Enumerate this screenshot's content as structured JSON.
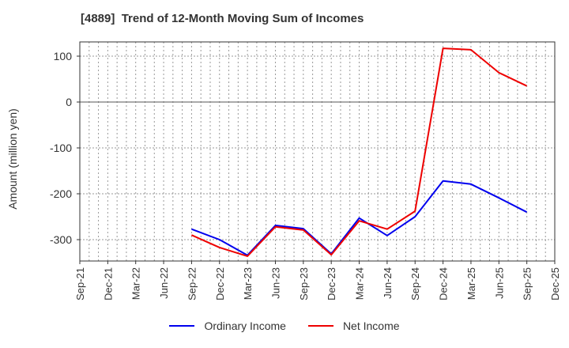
{
  "chart_data": {
    "type": "line",
    "title": "[4889]  Trend of 12-Month Moving Sum of Incomes",
    "xlabel": "",
    "ylabel": "Amount (million yen)",
    "ylim": [
      -345,
      130
    ],
    "yticks": [
      100,
      0,
      -100,
      -200,
      -300
    ],
    "grid": true,
    "legend_position": "bottom",
    "categories": [
      "Sep-21",
      "Dec-21",
      "Mar-22",
      "Jun-22",
      "Sep-22",
      "Dec-22",
      "Mar-23",
      "Jun-23",
      "Sep-23",
      "Dec-23",
      "Mar-24",
      "Jun-24",
      "Sep-24",
      "Dec-24",
      "Mar-25",
      "Jun-25",
      "Sep-25",
      "Dec-25"
    ],
    "series": [
      {
        "name": "Ordinary Income",
        "color": "#0000ee",
        "values": [
          null,
          null,
          null,
          null,
          -277,
          -300,
          -334,
          -269,
          -276,
          -331,
          -253,
          -291,
          -250,
          -172,
          -179,
          -209,
          -240,
          null
        ]
      },
      {
        "name": "Net Income",
        "color": "#ee0000",
        "values": [
          null,
          null,
          null,
          null,
          -290,
          -317,
          -336,
          -272,
          -279,
          -333,
          -259,
          -277,
          -238,
          117,
          114,
          64,
          35,
          null
        ]
      }
    ]
  },
  "title": "[4889]  Trend of 12-Month Moving Sum of Incomes",
  "ylabel": "Amount (million yen)",
  "legend": [
    {
      "label": "Ordinary Income",
      "color": "#0000ee"
    },
    {
      "label": "Net Income",
      "color": "#ee0000"
    }
  ]
}
